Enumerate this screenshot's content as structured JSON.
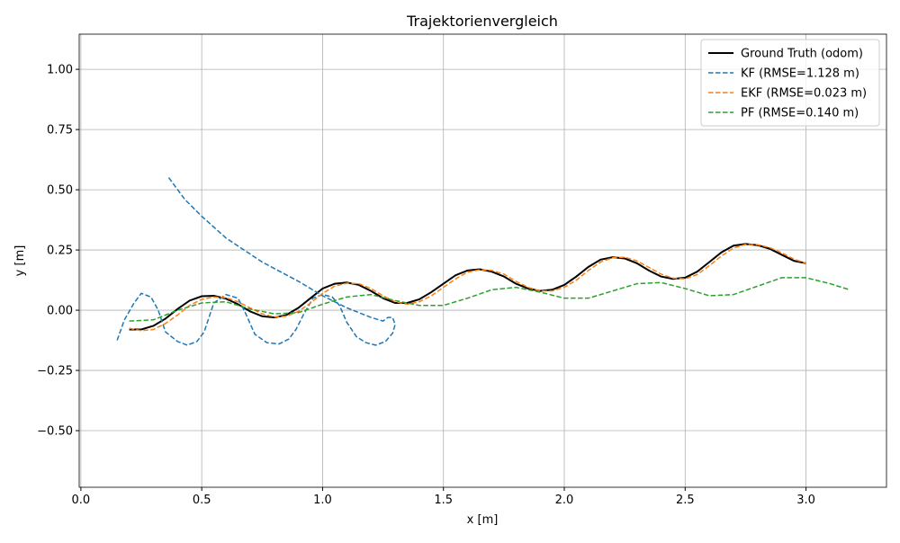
{
  "chart_data": {
    "type": "line",
    "title": "Trajektorienvergleich",
    "x_label": "x [m]",
    "y_label": "y [m]",
    "xlim": [
      -0.007,
      3.333
    ],
    "ylim": [
      -0.735,
      1.146
    ],
    "xticks": [
      {
        "value": 0,
        "label": "0.0"
      },
      {
        "value": 0.5,
        "label": "0.5"
      },
      {
        "value": 1,
        "label": "1.0"
      },
      {
        "value": 1.5,
        "label": "1.5"
      },
      {
        "value": 2,
        "label": "2.0"
      },
      {
        "value": 2.5,
        "label": "2.5"
      },
      {
        "value": 3,
        "label": "3.0"
      }
    ],
    "yticks": [
      {
        "value": -0.5,
        "label": "−0.50"
      },
      {
        "value": -0.25,
        "label": "−0.25"
      },
      {
        "value": 0,
        "label": "0.00"
      },
      {
        "value": 0.25,
        "label": "0.25"
      },
      {
        "value": 0.5,
        "label": "0.50"
      },
      {
        "value": 0.75,
        "label": "0.75"
      },
      {
        "value": 1,
        "label": "1.00"
      }
    ],
    "grid": true,
    "legend": "upper right",
    "series": [
      {
        "name": "Ground Truth (odom)",
        "color": "#000000",
        "linestyle": "solid",
        "x": [
          0.2,
          0.25,
          0.3,
          0.35,
          0.4,
          0.45,
          0.5,
          0.55,
          0.6,
          0.65,
          0.7,
          0.75,
          0.8,
          0.85,
          0.9,
          0.95,
          1.0,
          1.05,
          1.1,
          1.15,
          1.2,
          1.25,
          1.3,
          1.35,
          1.4,
          1.45,
          1.5,
          1.55,
          1.6,
          1.65,
          1.7,
          1.75,
          1.8,
          1.85,
          1.9,
          1.95,
          2.0,
          2.05,
          2.1,
          2.15,
          2.2,
          2.25,
          2.3,
          2.35,
          2.4,
          2.45,
          2.5,
          2.55,
          2.6,
          2.65,
          2.7,
          2.75,
          2.8,
          2.85,
          2.9,
          2.95,
          3.0
        ],
        "values": [
          -0.08,
          -0.08,
          -0.065,
          -0.035,
          0.005,
          0.04,
          0.058,
          0.06,
          0.048,
          0.025,
          -0.005,
          -0.025,
          -0.03,
          -0.02,
          0.01,
          0.05,
          0.09,
          0.11,
          0.115,
          0.105,
          0.08,
          0.05,
          0.03,
          0.03,
          0.045,
          0.075,
          0.11,
          0.145,
          0.165,
          0.17,
          0.16,
          0.14,
          0.11,
          0.09,
          0.08,
          0.085,
          0.105,
          0.14,
          0.18,
          0.21,
          0.22,
          0.215,
          0.195,
          0.165,
          0.14,
          0.13,
          0.135,
          0.16,
          0.2,
          0.24,
          0.268,
          0.275,
          0.27,
          0.255,
          0.23,
          0.205,
          0.195
        ]
      },
      {
        "name": "KF (RMSE=1.128 m)",
        "color": "#1f77b4",
        "linestyle": "dashed",
        "x": [
          0.15,
          0.18,
          0.22,
          0.25,
          0.29,
          0.32,
          0.35,
          0.4,
          0.44,
          0.48,
          0.51,
          0.55,
          0.6,
          0.65,
          0.68,
          0.72,
          0.77,
          0.82,
          0.86,
          0.89,
          0.92,
          0.96,
          1.0,
          1.04,
          1.07,
          1.1,
          1.14,
          1.18,
          1.22,
          1.26,
          1.29,
          1.3,
          1.29,
          1.27,
          1.25,
          1.2,
          1.1,
          1.0,
          0.9,
          0.75,
          0.6,
          0.5,
          0.43,
          0.36
        ],
        "values": [
          -0.125,
          -0.04,
          0.03,
          0.07,
          0.055,
          0.0,
          -0.09,
          -0.13,
          -0.145,
          -0.13,
          -0.09,
          0.03,
          0.065,
          0.05,
          -0.01,
          -0.1,
          -0.135,
          -0.14,
          -0.12,
          -0.08,
          -0.02,
          0.05,
          0.065,
          0.055,
          0.02,
          -0.05,
          -0.11,
          -0.135,
          -0.145,
          -0.13,
          -0.095,
          -0.06,
          -0.03,
          -0.03,
          -0.045,
          -0.03,
          0.01,
          0.06,
          0.12,
          0.2,
          0.3,
          0.39,
          0.46,
          0.555
        ]
      },
      {
        "name": "EKF (RMSE=0.023 m)",
        "color": "#ff7f0e",
        "linestyle": "dashed",
        "x": [
          0.2,
          0.25,
          0.3,
          0.35,
          0.4,
          0.45,
          0.5,
          0.55,
          0.6,
          0.65,
          0.7,
          0.75,
          0.8,
          0.85,
          0.9,
          0.95,
          1.0,
          1.05,
          1.1,
          1.15,
          1.2,
          1.25,
          1.3,
          1.35,
          1.4,
          1.45,
          1.5,
          1.55,
          1.6,
          1.65,
          1.7,
          1.75,
          1.8,
          1.85,
          1.9,
          1.95,
          2.0,
          2.05,
          2.1,
          2.15,
          2.2,
          2.25,
          2.3,
          2.35,
          2.4,
          2.45,
          2.5,
          2.55,
          2.6,
          2.65,
          2.7,
          2.75,
          2.8,
          2.85,
          2.9,
          2.95,
          3.0
        ],
        "values": [
          -0.075,
          -0.085,
          -0.08,
          -0.055,
          -0.02,
          0.02,
          0.045,
          0.055,
          0.052,
          0.035,
          0.01,
          -0.015,
          -0.028,
          -0.025,
          -0.005,
          0.03,
          0.07,
          0.1,
          0.112,
          0.11,
          0.09,
          0.06,
          0.035,
          0.025,
          0.035,
          0.06,
          0.095,
          0.13,
          0.158,
          0.168,
          0.165,
          0.15,
          0.12,
          0.095,
          0.08,
          0.08,
          0.095,
          0.125,
          0.165,
          0.2,
          0.218,
          0.22,
          0.205,
          0.178,
          0.15,
          0.133,
          0.13,
          0.148,
          0.185,
          0.225,
          0.258,
          0.273,
          0.272,
          0.26,
          0.238,
          0.212,
          0.195
        ]
      },
      {
        "name": "PF (RMSE=0.140 m)",
        "color": "#2ca02c",
        "linestyle": "dashed",
        "x": [
          0.2,
          0.3,
          0.4,
          0.5,
          0.6,
          0.7,
          0.8,
          0.9,
          1.0,
          1.1,
          1.2,
          1.3,
          1.4,
          1.5,
          1.6,
          1.7,
          1.8,
          1.9,
          2.0,
          2.1,
          2.2,
          2.3,
          2.4,
          2.5,
          2.6,
          2.7,
          2.8,
          2.9,
          3.0,
          3.1,
          3.18
        ],
        "values": [
          -0.045,
          -0.04,
          0.0,
          0.03,
          0.035,
          0.005,
          -0.015,
          -0.01,
          0.025,
          0.055,
          0.065,
          0.04,
          0.02,
          0.02,
          0.05,
          0.085,
          0.095,
          0.075,
          0.05,
          0.05,
          0.08,
          0.11,
          0.115,
          0.09,
          0.06,
          0.065,
          0.1,
          0.135,
          0.135,
          0.11,
          0.085
        ]
      }
    ]
  }
}
